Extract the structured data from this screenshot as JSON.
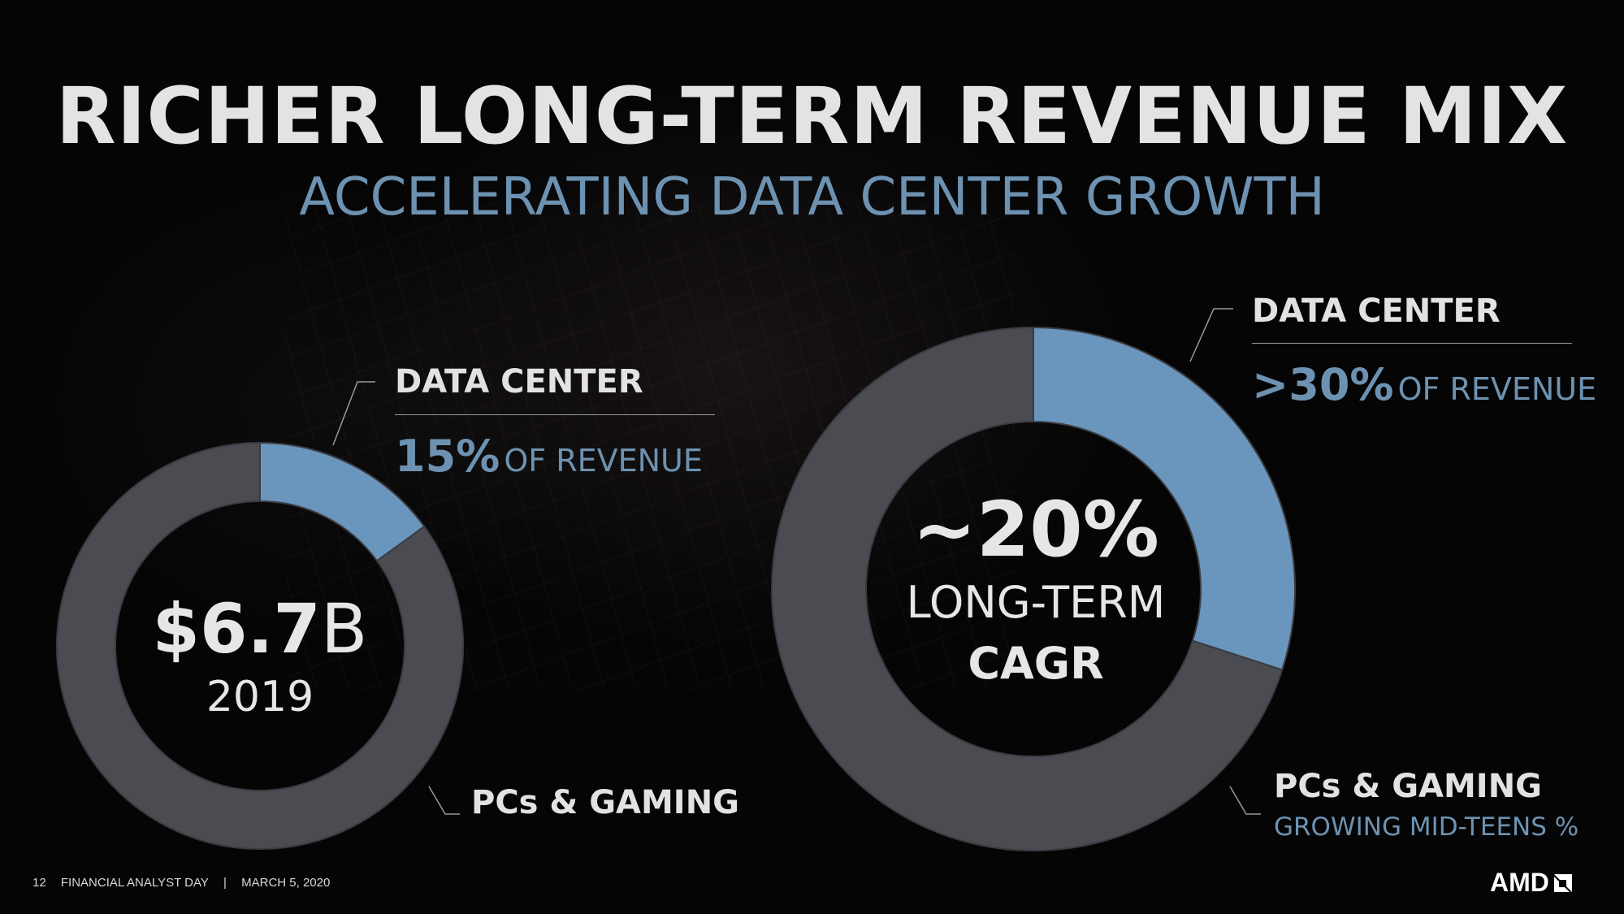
{
  "title": "RICHER LONG-TERM REVENUE MIX",
  "subtitle": "ACCELERATING DATA CENTER GROWTH",
  "left": {
    "center_value": "$6.7",
    "center_unit": "B",
    "center_year": "2019",
    "dc_label": "DATA CENTER",
    "dc_pct": "15%",
    "dc_suffix": "OF REVENUE",
    "pc_label": "PCs & GAMING"
  },
  "right": {
    "center_value": "~20%",
    "center_line2": "LONG-TERM",
    "center_line3": "CAGR",
    "dc_label": "DATA CENTER",
    "dc_pct": ">30%",
    "dc_suffix": "OF REVENUE",
    "pc_label": "PCs & GAMING",
    "pc_sub": "GROWING MID-TEENS %"
  },
  "footer": {
    "page": "12",
    "event": "FINANCIAL ANALYST DAY",
    "sep": "|",
    "date": "MARCH 5, 2020"
  },
  "logo": "AMD",
  "colors": {
    "data_center": "#6a95bc",
    "pcs_gaming": "#4b4c52",
    "accent_text": "#6d92b1"
  },
  "chart_data": [
    {
      "type": "pie",
      "labels": [
        "DATA CENTER",
        "PCs & GAMING"
      ],
      "values": [
        15,
        85
      ],
      "donut": true
    },
    {
      "type": "pie",
      "labels": [
        "DATA CENTER",
        "PCs & GAMING"
      ],
      "values": [
        30,
        70
      ],
      "donut": true
    }
  ]
}
